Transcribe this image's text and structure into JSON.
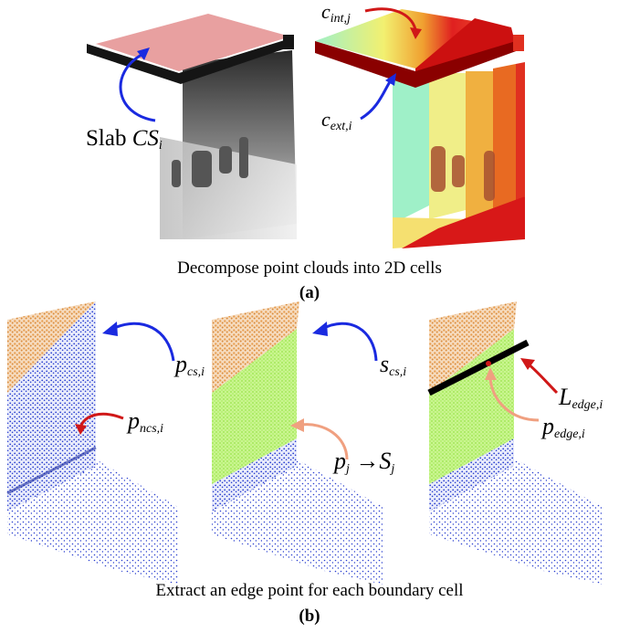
{
  "panel_a": {
    "caption": "Decompose point clouds into 2D cells",
    "sublabel": "(a)",
    "labels": {
      "slab": {
        "prefix": "Slab ",
        "symbol": "CS",
        "sub": "i"
      },
      "c_int": {
        "symbol": "c",
        "sub": "int,j"
      },
      "c_ext": {
        "symbol": "c",
        "sub": "ext,i"
      }
    }
  },
  "panel_b": {
    "caption": "Extract an edge point for each boundary cell",
    "sublabel": "(b)",
    "labels": {
      "p_cs": {
        "symbol": "p",
        "sub": "cs,i"
      },
      "p_ncs": {
        "symbol": "p",
        "sub": "ncs,i"
      },
      "s_cs": {
        "symbol": "s",
        "sub": "cs,i"
      },
      "p_j": {
        "symbol": "p",
        "sub": "j",
        "arrow": "→",
        "target_symbol": "S",
        "target_sub": "j"
      },
      "L_edge": {
        "symbol": "L",
        "sub": "edge,i"
      },
      "p_edge": {
        "symbol": "p",
        "sub": "edge,i"
      }
    }
  },
  "colors": {
    "slab_fill": "#e8a0a0",
    "orange_points": "#e69a4a",
    "blue_points": "#2a3fd0",
    "green_points": "#b8f070",
    "blue_arrow": "#1a2ae0",
    "red_arrow": "#d01818",
    "salmon_arrow": "#f0a080"
  }
}
